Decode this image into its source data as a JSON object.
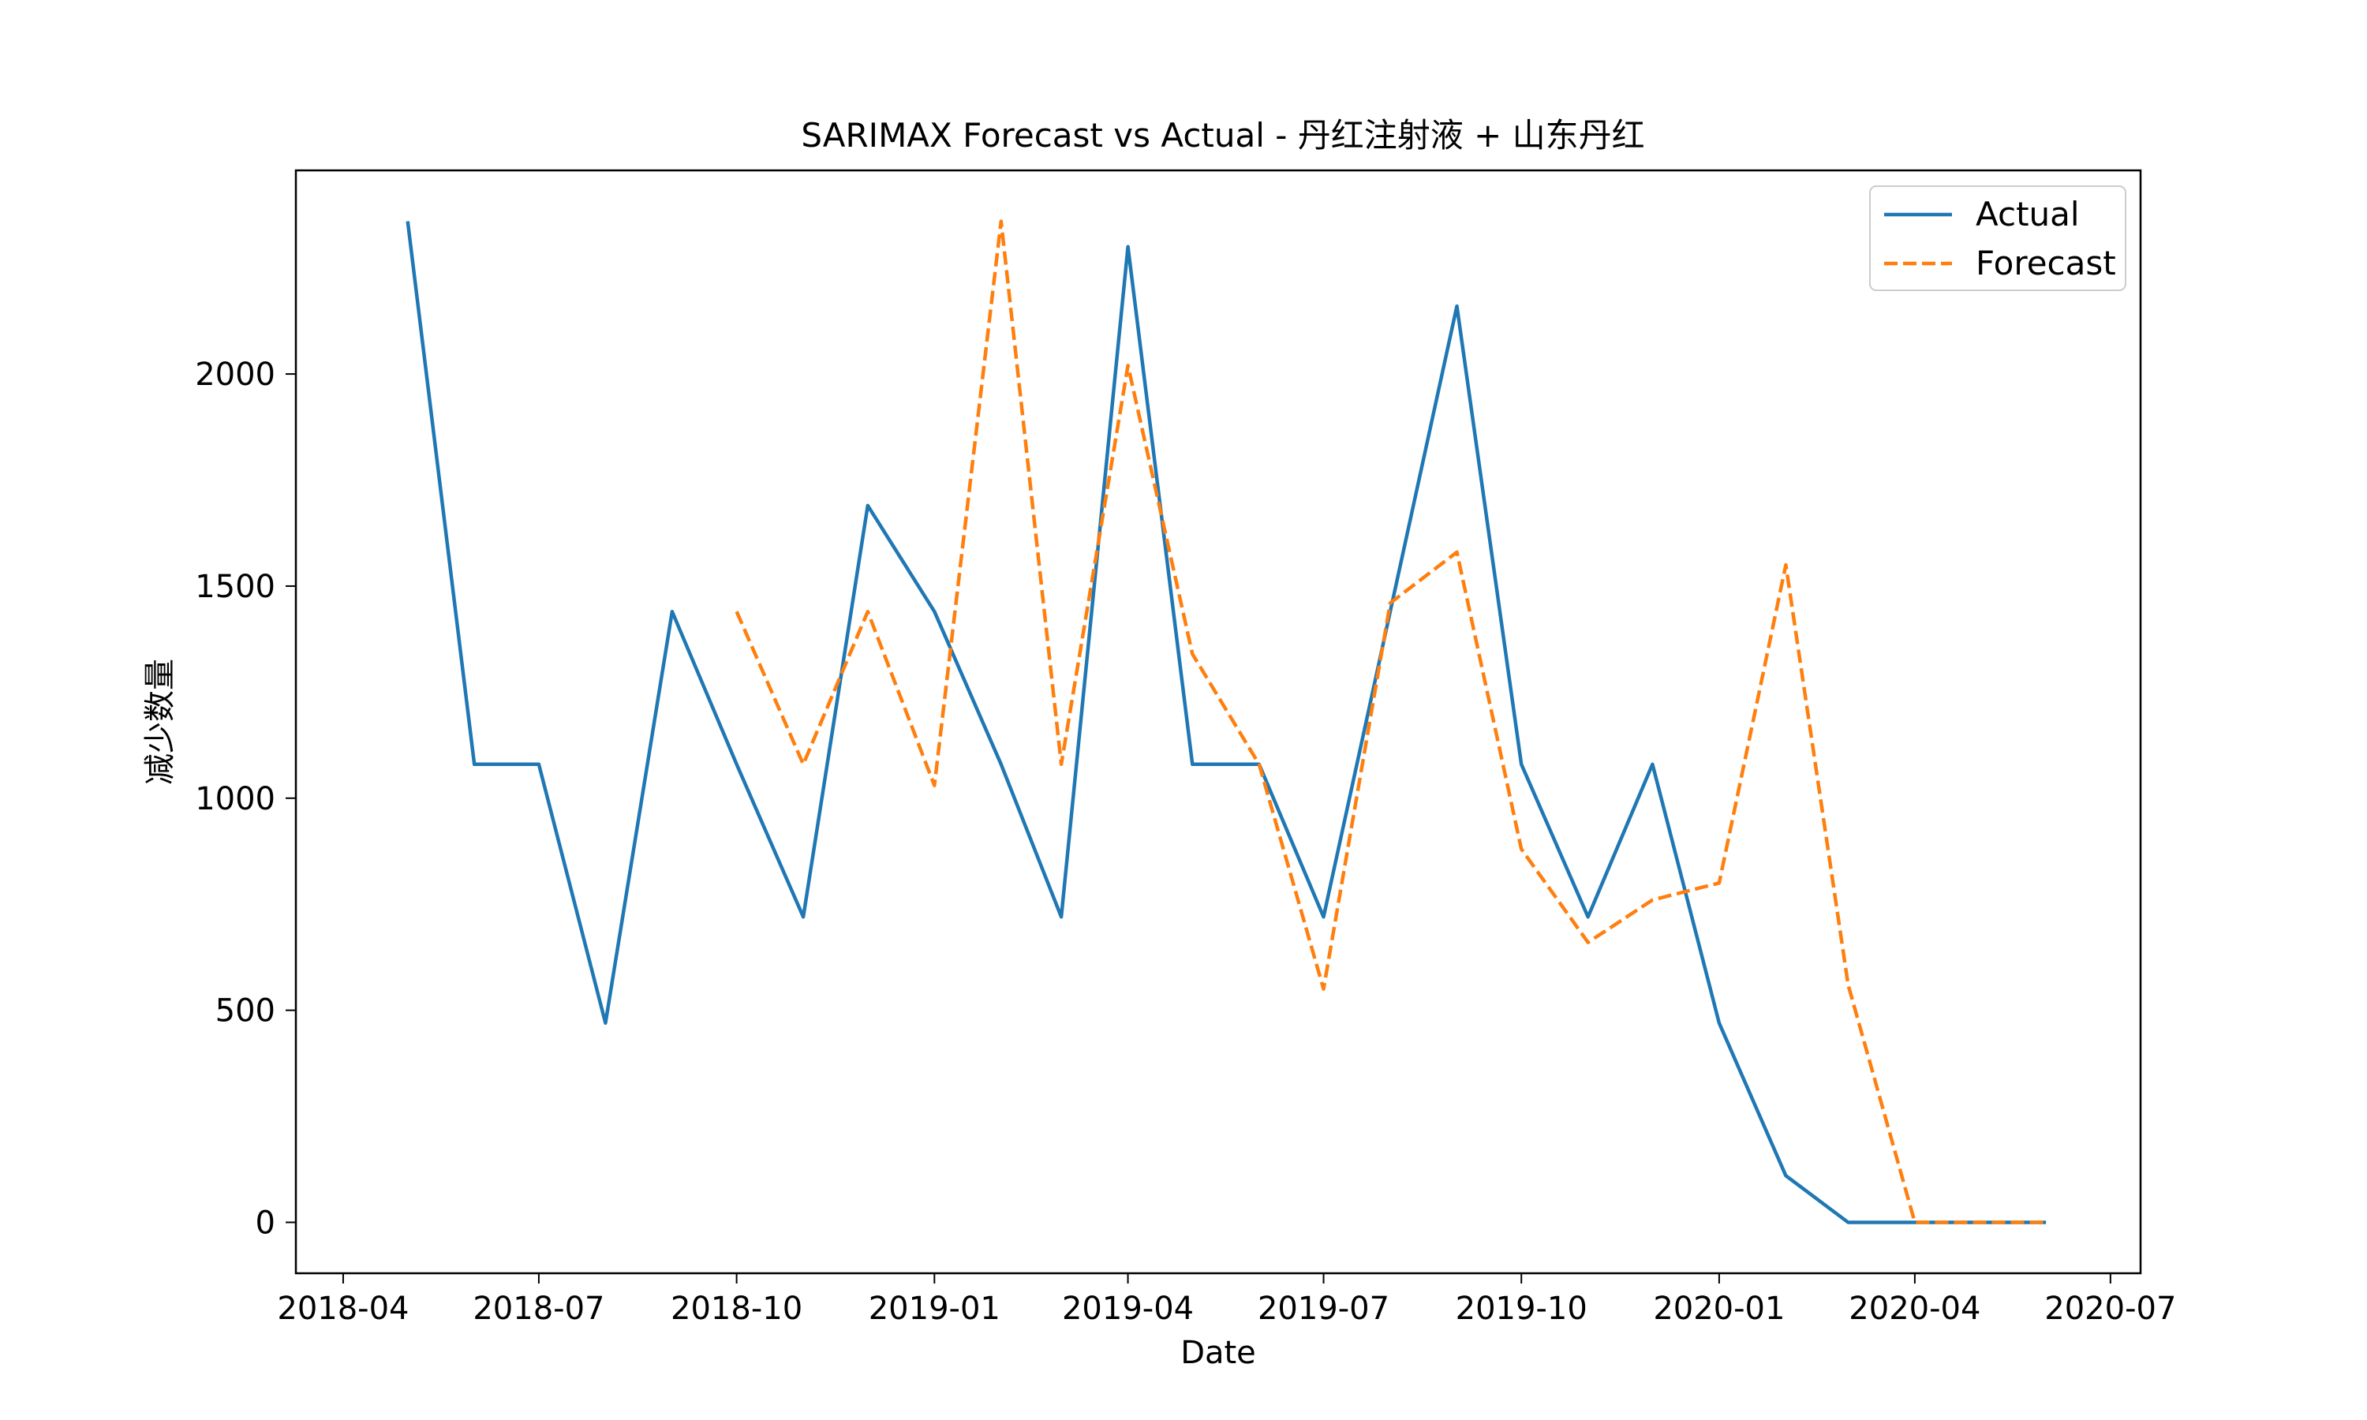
{
  "chart_data": {
    "type": "line",
    "title": "SARIMAX Forecast vs Actual - 丹红注射液 + 山东丹红",
    "xlabel": "Date",
    "ylabel": "减少数量",
    "x_ticks": [
      "2018-04",
      "2018-07",
      "2018-10",
      "2019-01",
      "2019-04",
      "2019-07",
      "2019-10",
      "2020-01",
      "2020-04",
      "2020-07"
    ],
    "y_ticks": [
      0,
      500,
      1000,
      1500,
      2000
    ],
    "xlim": [
      "2018-03-10",
      "2020-07-15"
    ],
    "ylim": [
      -120,
      2480
    ],
    "grid": false,
    "legend_position": "top-right",
    "series": [
      {
        "name": "Actual",
        "color": "#1f77b4",
        "style": "solid",
        "points": [
          [
            "2018-05-01",
            2360
          ],
          [
            "2018-06-01",
            1080
          ],
          [
            "2018-07-01",
            1080
          ],
          [
            "2018-08-01",
            470
          ],
          [
            "2018-09-01",
            1440
          ],
          [
            "2018-10-01",
            1080
          ],
          [
            "2018-11-01",
            720
          ],
          [
            "2018-12-01",
            1690
          ],
          [
            "2019-01-01",
            1440
          ],
          [
            "2019-02-01",
            1080
          ],
          [
            "2019-03-01",
            720
          ],
          [
            "2019-04-01",
            2300
          ],
          [
            "2019-05-01",
            1080
          ],
          [
            "2019-06-01",
            1080
          ],
          [
            "2019-07-01",
            720
          ],
          [
            "2019-08-01",
            1440
          ],
          [
            "2019-09-01",
            2160
          ],
          [
            "2019-10-01",
            1080
          ],
          [
            "2019-11-01",
            720
          ],
          [
            "2019-12-01",
            1080
          ],
          [
            "2020-01-01",
            470
          ],
          [
            "2020-02-01",
            110
          ],
          [
            "2020-03-01",
            0
          ],
          [
            "2020-04-01",
            0
          ],
          [
            "2020-05-01",
            0
          ],
          [
            "2020-06-01",
            0
          ]
        ]
      },
      {
        "name": "Forecast",
        "color": "#ff7f0e",
        "style": "dashed",
        "points": [
          [
            "2018-10-01",
            1440
          ],
          [
            "2018-11-01",
            1080
          ],
          [
            "2018-12-01",
            1440
          ],
          [
            "2019-01-01",
            1030
          ],
          [
            "2019-02-01",
            2360
          ],
          [
            "2019-03-01",
            1080
          ],
          [
            "2019-04-01",
            2020
          ],
          [
            "2019-05-01",
            1340
          ],
          [
            "2019-06-01",
            1080
          ],
          [
            "2019-07-01",
            550
          ],
          [
            "2019-08-01",
            1460
          ],
          [
            "2019-09-01",
            1580
          ],
          [
            "2019-10-01",
            880
          ],
          [
            "2019-11-01",
            660
          ],
          [
            "2019-12-01",
            760
          ],
          [
            "2020-01-01",
            800
          ],
          [
            "2020-02-01",
            1550
          ],
          [
            "2020-03-01",
            560
          ],
          [
            "2020-04-01",
            0
          ],
          [
            "2020-05-01",
            0
          ],
          [
            "2020-06-01",
            0
          ]
        ]
      }
    ]
  }
}
